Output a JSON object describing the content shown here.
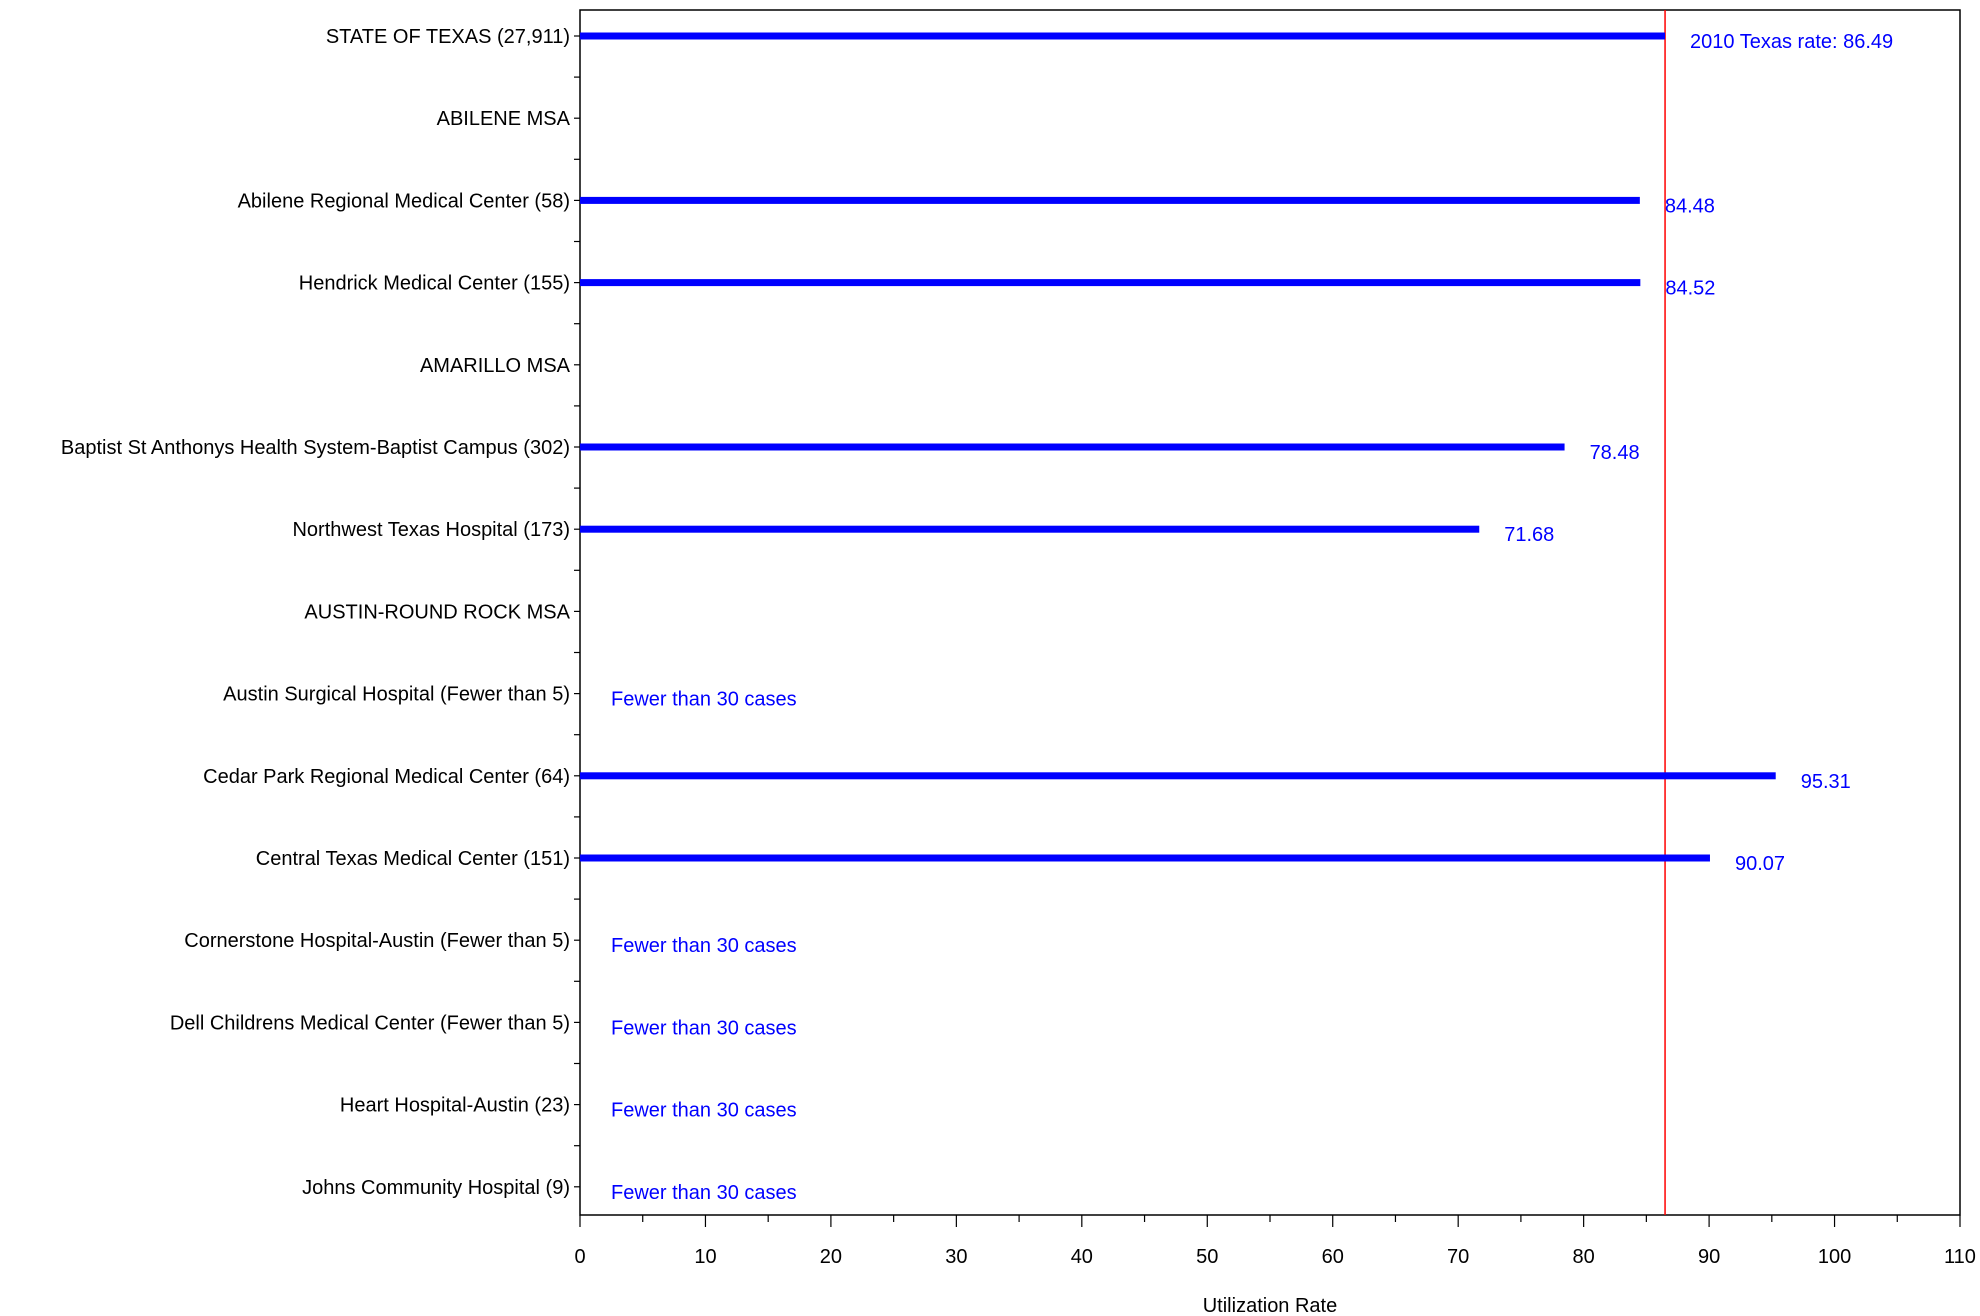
{
  "chart_data": {
    "type": "bar",
    "orientation": "horizontal",
    "categories": [
      "STATE OF TEXAS (27,911)",
      "ABILENE MSA",
      "Abilene Regional Medical Center (58)",
      "Hendrick Medical Center (155)",
      "AMARILLO MSA",
      "Baptist St Anthonys Health System-Baptist Campus (302)",
      "Northwest Texas Hospital (173)",
      "AUSTIN-ROUND ROCK MSA",
      "Austin Surgical Hospital (Fewer than 5)",
      "Cedar Park Regional Medical Center (64)",
      "Central Texas Medical Center (151)",
      "Cornerstone Hospital-Austin (Fewer than 5)",
      "Dell Childrens Medical Center (Fewer than 5)",
      "Heart Hospital-Austin (23)",
      "Johns Community Hospital (9)"
    ],
    "values": [
      86.49,
      null,
      84.48,
      84.52,
      null,
      78.48,
      71.68,
      null,
      null,
      95.31,
      90.07,
      null,
      null,
      null,
      null
    ],
    "value_labels": [
      "2010 Texas rate:  86.49",
      "",
      "84.48",
      "84.52",
      "",
      "78.48",
      "71.68",
      "",
      "Fewer than 30 cases",
      "95.31",
      "90.07",
      "Fewer than 30 cases",
      "Fewer than 30 cases",
      "Fewer than 30 cases",
      "Fewer than 30 cases"
    ],
    "reference_line": {
      "value": 86.49,
      "color": "#ff0000"
    },
    "xlabel": "Utilization Rate",
    "xlim": [
      0,
      110
    ],
    "xticks": [
      "0",
      "10",
      "20",
      "30",
      "40",
      "50",
      "60",
      "70",
      "80",
      "90",
      "100",
      "110"
    ],
    "bar_color": "#0000ff",
    "label_color": "#0000ff",
    "grid": false
  }
}
